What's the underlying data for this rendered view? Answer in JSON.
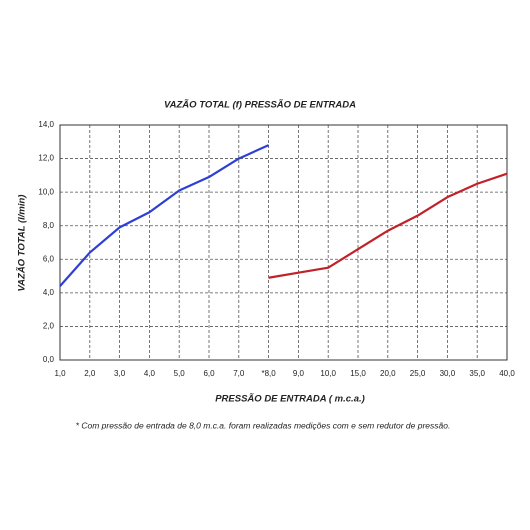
{
  "chart_data": {
    "type": "line",
    "title": "VAZÃO TOTAL (f) PRESSÃO DE ENTRADA",
    "x_label": "PRESSÃO DE ENTRADA ( m.c.a.)",
    "y_label": "VAZÃO TOTAL (l/min)",
    "footnote": "* Com pressão de entrada de 8,0 m.c.a. foram realizadas medições com e sem redutor de pressão.",
    "categories": [
      "1,0",
      "2,0",
      "3,0",
      "4,0",
      "5,0",
      "6,0",
      "7,0",
      "*8,0",
      "9,0",
      "10,0",
      "15,0",
      "20,0",
      "25,0",
      "30,0",
      "35,0",
      "40,0"
    ],
    "series": [
      {
        "color": "#2e3fd6",
        "values": [
          4.4,
          6.4,
          7.9,
          8.8,
          10.1,
          10.9,
          12.0,
          12.8,
          null,
          null,
          null,
          null,
          null,
          null,
          null,
          null
        ]
      },
      {
        "color": "#c0222a",
        "values": [
          null,
          null,
          null,
          null,
          null,
          null,
          null,
          4.9,
          5.2,
          5.5,
          6.6,
          7.7,
          8.6,
          9.7,
          10.5,
          11.1
        ]
      }
    ],
    "ylim": [
      0,
      14
    ],
    "yticks": [
      {
        "value": 0,
        "label": "0,0"
      },
      {
        "value": 2,
        "label": "2,0"
      },
      {
        "value": 4,
        "label": "4,0"
      },
      {
        "value": 6,
        "label": "6,0"
      },
      {
        "value": 8,
        "label": "8,0"
      },
      {
        "value": 10,
        "label": "10,0"
      },
      {
        "value": 12,
        "label": "12,0"
      },
      {
        "value": 14,
        "label": "14,0"
      }
    ],
    "grid": true
  }
}
